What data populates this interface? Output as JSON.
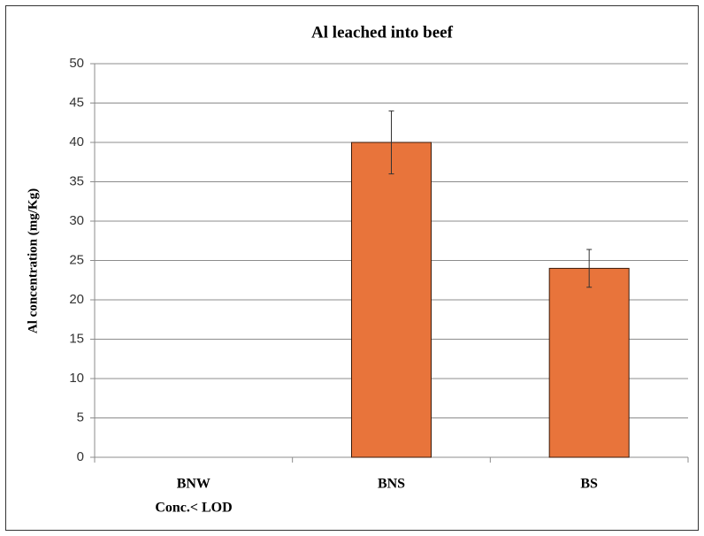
{
  "chart_data": {
    "type": "bar",
    "title": "Al leached into beef",
    "y_label": "Al concentration (mg/Kg)",
    "categories": [
      "BNW",
      "BNS",
      "BS"
    ],
    "annotation": "Conc.< LOD",
    "values": [
      null,
      40,
      24
    ],
    "errors": [
      null,
      4,
      2.4
    ],
    "color": "#e8743b",
    "ylim": [
      0,
      50
    ],
    "yticks": [
      0,
      5,
      10,
      15,
      20,
      25,
      30,
      35,
      40,
      45,
      50
    ],
    "grid": true
  }
}
